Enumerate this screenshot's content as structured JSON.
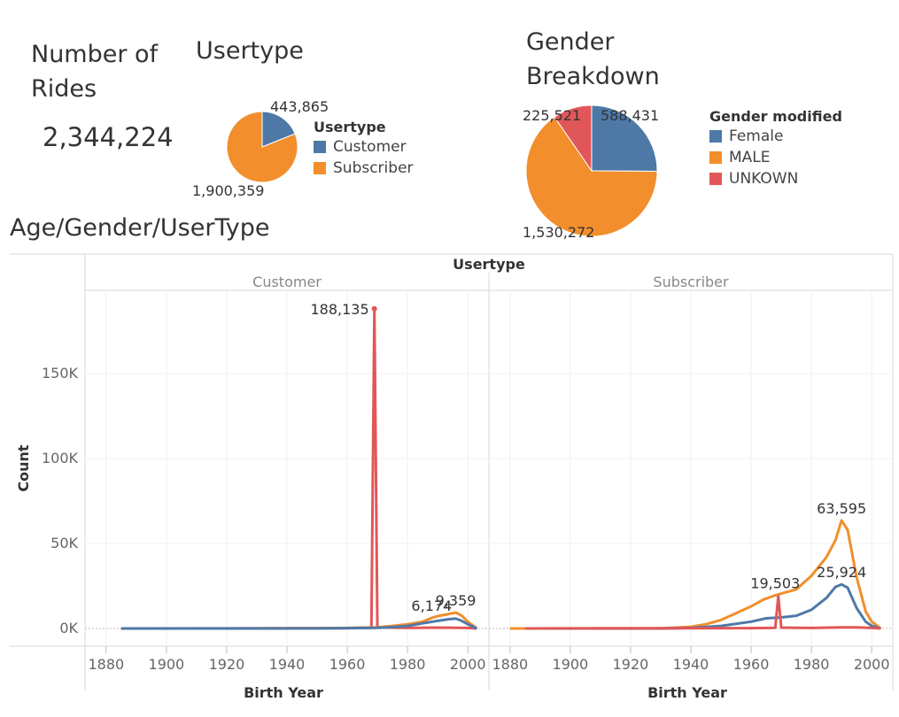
{
  "rides_title": "Number of Rides",
  "rides_value": "2,344,224",
  "usertype_title": "Usertype",
  "usertype_legend": {
    "title": "Usertype",
    "items": [
      {
        "label": "Customer",
        "color": "#4e79a7"
      },
      {
        "label": "Subscriber",
        "color": "#f28e2b"
      }
    ]
  },
  "usertype_labels": {
    "customer": "443,865",
    "subscriber": "1,900,359"
  },
  "gender_title": "Gender Breakdown",
  "gender_legend": {
    "title": "Gender modified",
    "items": [
      {
        "label": "Female",
        "color": "#4e79a7"
      },
      {
        "label": "MALE",
        "color": "#f28e2b"
      },
      {
        "label": "UNKOWN",
        "color": "#e15759"
      }
    ]
  },
  "gender_labels": {
    "female": "588,431",
    "male": "1,530,272",
    "unknown": "225,521"
  },
  "line_title": "Age/Gender/UserType",
  "chart_data": [
    {
      "type": "pie",
      "title": "Usertype",
      "slices": [
        {
          "label": "Customer",
          "value": 443865,
          "color": "#4e79a7"
        },
        {
          "label": "Subscriber",
          "value": 1900359,
          "color": "#f28e2b"
        }
      ]
    },
    {
      "type": "pie",
      "title": "Gender Breakdown",
      "slices": [
        {
          "label": "Female",
          "value": 588431,
          "color": "#4e79a7"
        },
        {
          "label": "MALE",
          "value": 1530272,
          "color": "#f28e2b"
        },
        {
          "label": "UNKOWN",
          "value": 225521,
          "color": "#e15759"
        }
      ]
    },
    {
      "type": "line",
      "title": "Age/Gender/UserType",
      "column_header": "Usertype",
      "xlabel": "Birth Year",
      "ylabel": "Count",
      "xlim": [
        1873,
        2007
      ],
      "ylim": [
        0,
        195000
      ],
      "x_ticks": [
        1880,
        1900,
        1920,
        1940,
        1960,
        1980,
        2000
      ],
      "y_ticks": [
        {
          "v": 0,
          "label": "0K"
        },
        {
          "v": 50000,
          "label": "50K"
        },
        {
          "v": 100000,
          "label": "100K"
        },
        {
          "v": 150000,
          "label": "150K"
        }
      ],
      "grid": true,
      "panels": [
        {
          "name": "Customer",
          "series": [
            {
              "name": "UNKOWN",
              "color": "#e15759",
              "points": [
                [
                  1885,
                  0
                ],
                [
                  1960,
                  200
                ],
                [
                  1968,
                  400
                ],
                [
                  1969,
                  188135
                ],
                [
                  1970,
                  600
                ],
                [
                  1980,
                  300
                ],
                [
                  1990,
                  500
                ],
                [
                  2000,
                  300
                ],
                [
                  2003,
                  0
                ]
              ]
            },
            {
              "name": "MALE",
              "color": "#f28e2b",
              "points": [
                [
                  1885,
                  0
                ],
                [
                  1950,
                  50
                ],
                [
                  1960,
                  300
                ],
                [
                  1970,
                  700
                ],
                [
                  1975,
                  1500
                ],
                [
                  1980,
                  2500
                ],
                [
                  1985,
                  4000
                ],
                [
                  1988,
                  6174
                ],
                [
                  1990,
                  7300
                ],
                [
                  1993,
                  8300
                ],
                [
                  1996,
                  9359
                ],
                [
                  1998,
                  7500
                ],
                [
                  2000,
                  4000
                ],
                [
                  2003,
                  0
                ]
              ]
            },
            {
              "name": "Female",
              "color": "#4e79a7",
              "points": [
                [
                  1885,
                  0
                ],
                [
                  1950,
                  30
                ],
                [
                  1960,
                  200
                ],
                [
                  1970,
                  400
                ],
                [
                  1975,
                  800
                ],
                [
                  1980,
                  1500
                ],
                [
                  1985,
                  3000
                ],
                [
                  1990,
                  4500
                ],
                [
                  1994,
                  5500
                ],
                [
                  1996,
                  5800
                ],
                [
                  1998,
                  4500
                ],
                [
                  2000,
                  2500
                ],
                [
                  2003,
                  0
                ]
              ]
            }
          ],
          "labels": [
            {
              "text": "188,135",
              "x": 1969,
              "y": 188135
            },
            {
              "text": "6,174",
              "x": 1988,
              "y": 6174
            },
            {
              "text": "9,359",
              "x": 1996,
              "y": 9359
            }
          ]
        },
        {
          "name": "Subscriber",
          "series": [
            {
              "name": "MALE",
              "color": "#f28e2b",
              "points": [
                [
                  1880,
                  0
                ],
                [
                  1885,
                  0
                ],
                [
                  1930,
                  100
                ],
                [
                  1940,
                  1000
                ],
                [
                  1945,
                  2500
                ],
                [
                  1950,
                  5000
                ],
                [
                  1955,
                  9000
                ],
                [
                  1960,
                  13000
                ],
                [
                  1964,
                  17000
                ],
                [
                  1968,
                  19503
                ],
                [
                  1970,
                  20500
                ],
                [
                  1975,
                  23000
                ],
                [
                  1980,
                  31000
                ],
                [
                  1985,
                  42000
                ],
                [
                  1988,
                  52000
                ],
                [
                  1990,
                  63595
                ],
                [
                  1992,
                  58000
                ],
                [
                  1995,
                  30000
                ],
                [
                  1998,
                  10000
                ],
                [
                  2000,
                  4000
                ],
                [
                  2003,
                  0
                ]
              ]
            },
            {
              "name": "Female",
              "color": "#4e79a7",
              "points": [
                [
                  1885,
                  0
                ],
                [
                  1930,
                  0
                ],
                [
                  1940,
                  300
                ],
                [
                  1950,
                  1500
                ],
                [
                  1960,
                  4000
                ],
                [
                  1965,
                  6000
                ],
                [
                  1970,
                  6500
                ],
                [
                  1975,
                  7500
                ],
                [
                  1980,
                  11000
                ],
                [
                  1985,
                  18000
                ],
                [
                  1988,
                  24500
                ],
                [
                  1990,
                  25924
                ],
                [
                  1992,
                  24000
                ],
                [
                  1995,
                  12000
                ],
                [
                  1998,
                  4000
                ],
                [
                  2000,
                  1500
                ],
                [
                  2003,
                  0
                ]
              ]
            },
            {
              "name": "UNKOWN",
              "color": "#e15759",
              "points": [
                [
                  1885,
                  0
                ],
                [
                  1960,
                  200
                ],
                [
                  1968,
                  400
                ],
                [
                  1969,
                  19000
                ],
                [
                  1970,
                  500
                ],
                [
                  1980,
                  300
                ],
                [
                  1990,
                  600
                ],
                [
                  1995,
                  600
                ],
                [
                  2000,
                  300
                ],
                [
                  2003,
                  0
                ]
              ]
            }
          ],
          "labels": [
            {
              "text": "19,503",
              "x": 1968,
              "y": 19503
            },
            {
              "text": "63,595",
              "x": 1990,
              "y": 63595
            },
            {
              "text": "25,924",
              "x": 1990,
              "y": 25924
            }
          ]
        }
      ]
    }
  ]
}
